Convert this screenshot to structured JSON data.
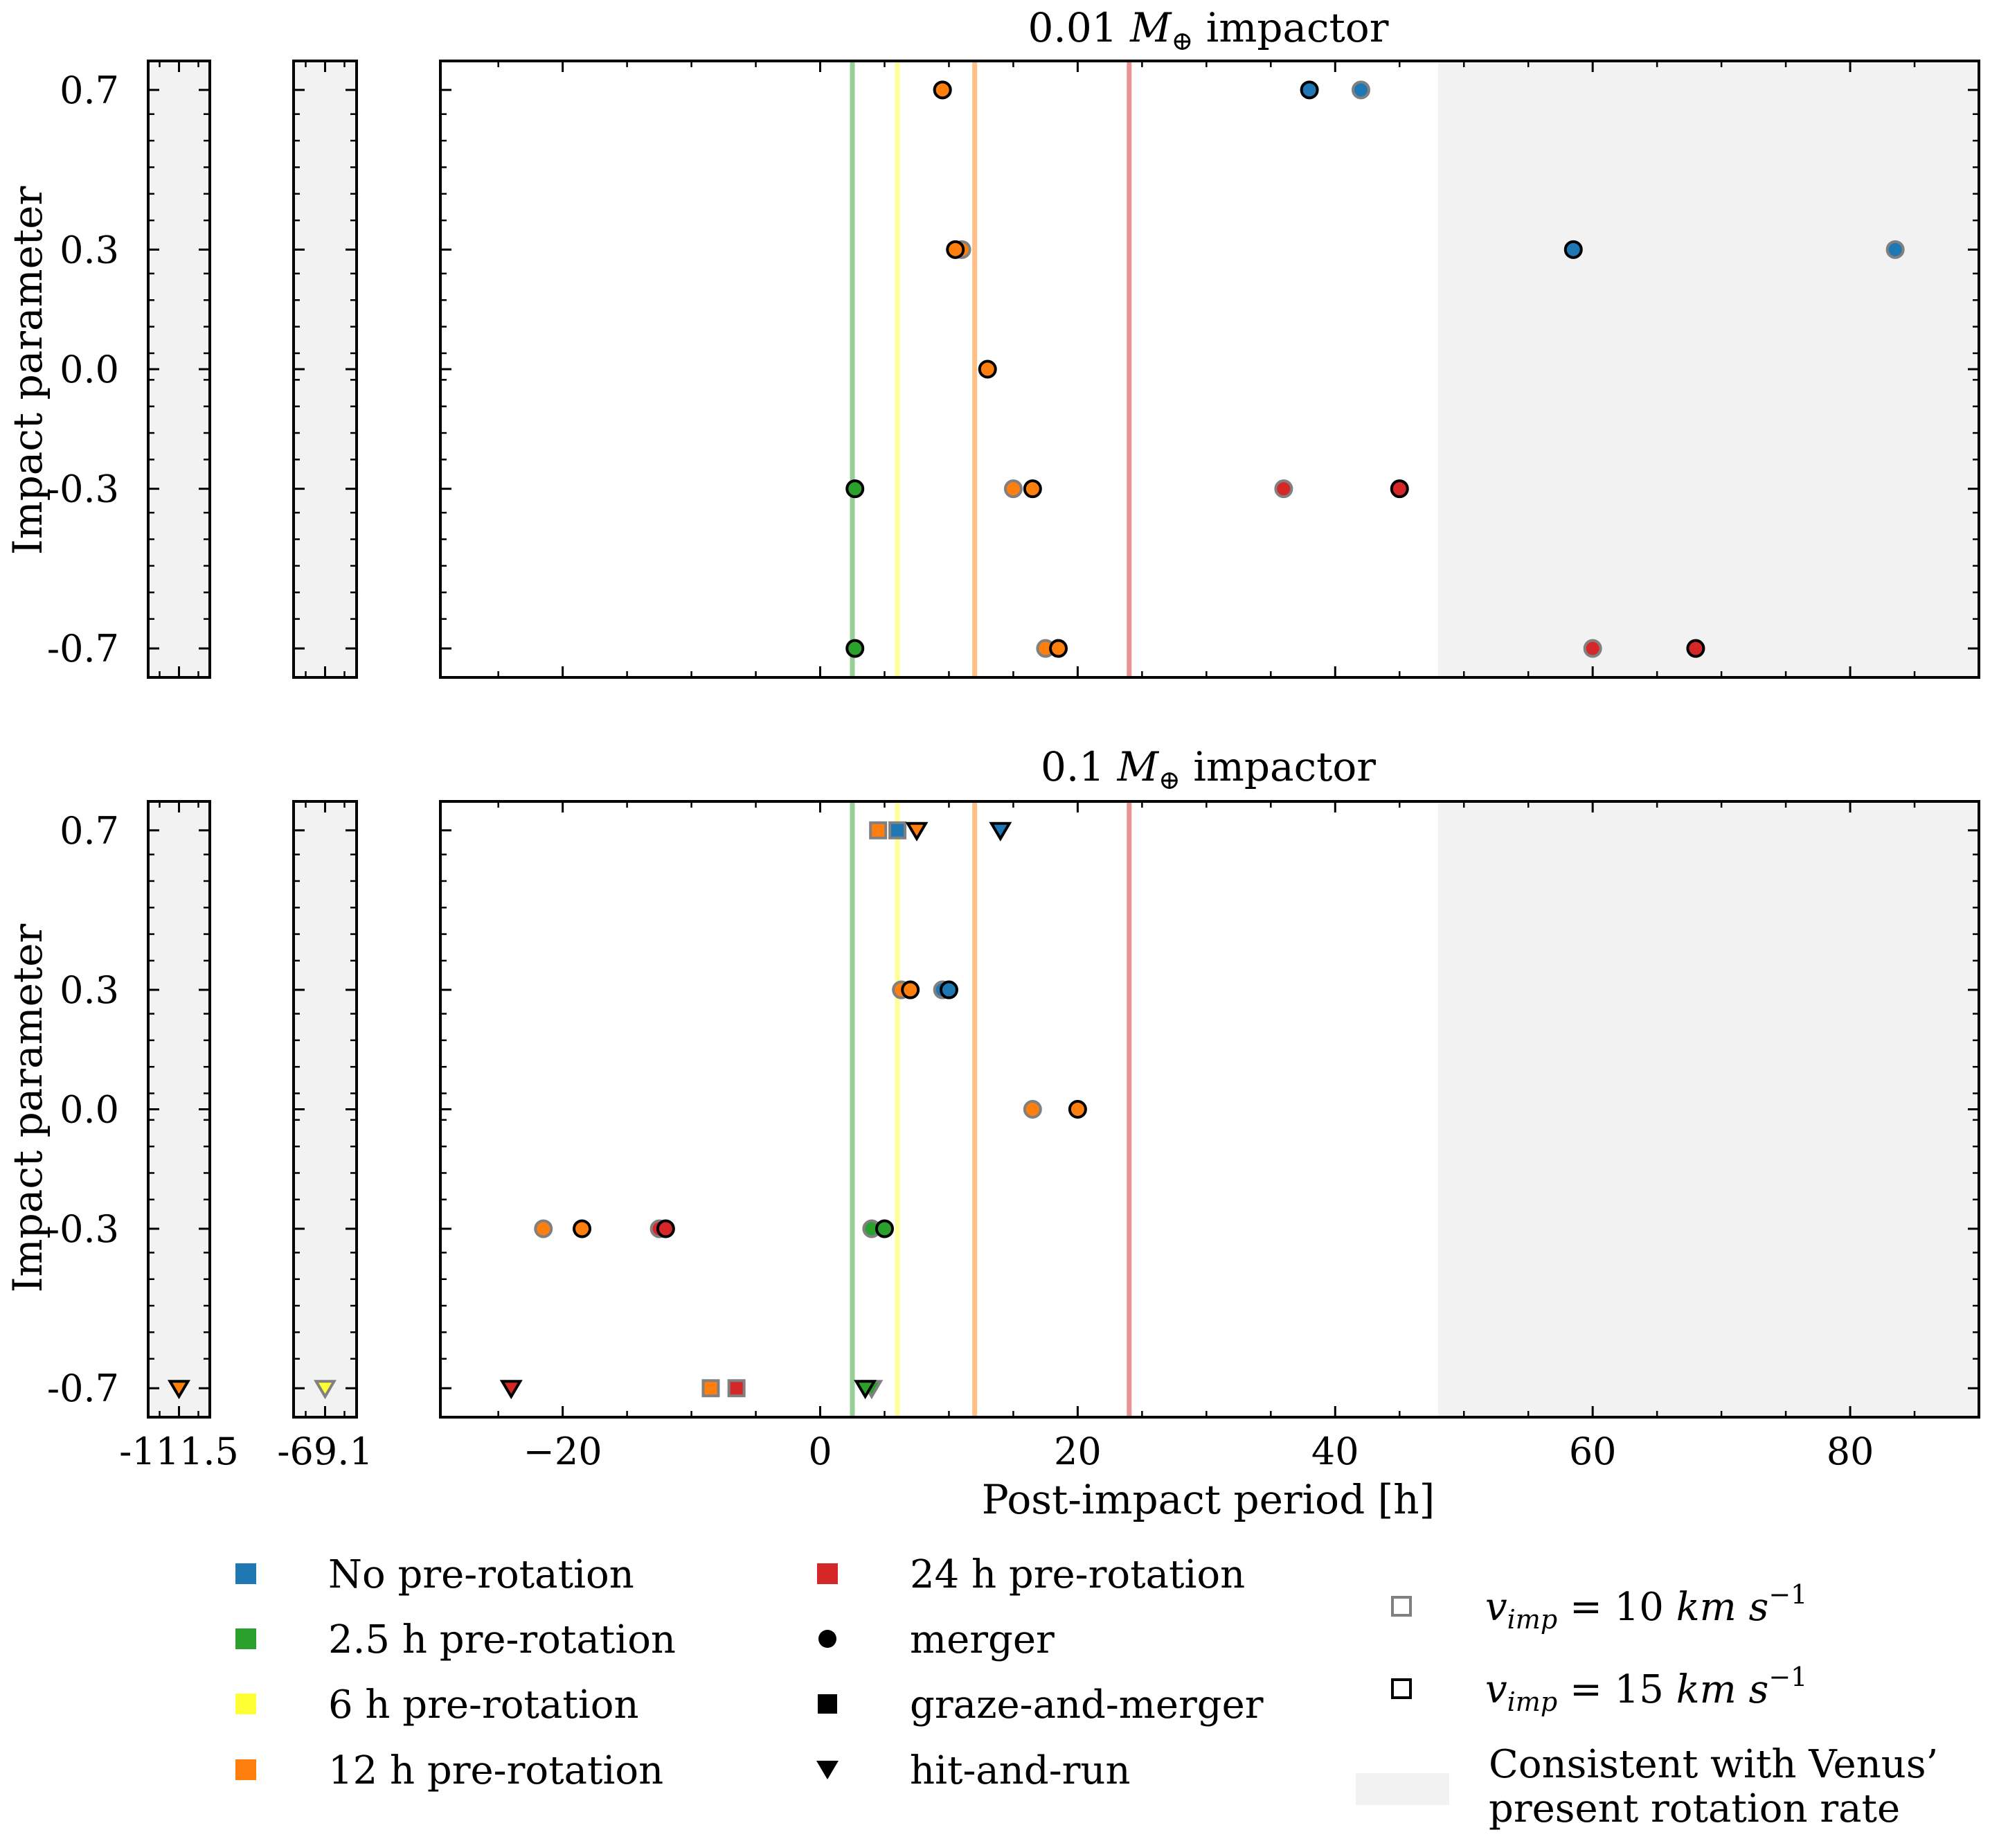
{
  "chart_data": {
    "type": "scatter",
    "x_label": "Post-impact period [h]",
    "y_label": "Impact parameter",
    "x_ticks": [
      -20,
      0,
      20,
      40,
      60,
      80
    ],
    "y_ticks": [
      0.7,
      0.3,
      0.0,
      -0.3,
      -0.7
    ],
    "y_tick_labels": [
      "0.7",
      "0.3",
      "0.0",
      "-0.3",
      "-0.7"
    ],
    "x_range": [
      -29.5,
      90
    ],
    "broken_axis_values": [
      -111.5,
      -69.1
    ],
    "broken_axis_labels": [
      "-111.5",
      "-69.1"
    ],
    "venus_region": {
      "from": 48,
      "to": 90
    },
    "reference_lines": [
      {
        "period": 2.5,
        "color": "#2ca02c"
      },
      {
        "period": 6,
        "color": "#ffff33"
      },
      {
        "period": 12,
        "color": "#ff7f0e"
      },
      {
        "period": 24,
        "color": "#d62728"
      }
    ],
    "colors": {
      "none": "#1f77b4",
      "r2.5": "#2ca02c",
      "r6": "#ffff33",
      "r12": "#ff7f0e",
      "r24": "#d62728",
      "venus_fill": "#f2f2f2",
      "edge_v10": "#808080",
      "edge_v15": "#000000"
    },
    "panels": [
      {
        "title_prefix": "0.01",
        "title_suffix": "impactor",
        "points": [
          {
            "x": 9.5,
            "b": 0.7,
            "rot": "r12",
            "v": 10,
            "kind": "merger"
          },
          {
            "x": 9.5,
            "b": 0.7,
            "rot": "r12",
            "v": 15,
            "kind": "merger"
          },
          {
            "x": 38.0,
            "b": 0.7,
            "rot": "none",
            "v": 15,
            "kind": "merger"
          },
          {
            "x": 42.0,
            "b": 0.7,
            "rot": "none",
            "v": 10,
            "kind": "merger"
          },
          {
            "x": 11.0,
            "b": 0.3,
            "rot": "r12",
            "v": 10,
            "kind": "merger"
          },
          {
            "x": 10.5,
            "b": 0.3,
            "rot": "r12",
            "v": 15,
            "kind": "merger"
          },
          {
            "x": 58.5,
            "b": 0.3,
            "rot": "none",
            "v": 15,
            "kind": "merger"
          },
          {
            "x": 83.5,
            "b": 0.3,
            "rot": "none",
            "v": 10,
            "kind": "merger"
          },
          {
            "x": 13.0,
            "b": 0.0,
            "rot": "r12",
            "v": 15,
            "kind": "merger"
          },
          {
            "x": 2.7,
            "b": -0.3,
            "rot": "r2.5",
            "v": 15,
            "kind": "merger"
          },
          {
            "x": 15.0,
            "b": -0.3,
            "rot": "r12",
            "v": 10,
            "kind": "merger"
          },
          {
            "x": 16.5,
            "b": -0.3,
            "rot": "r12",
            "v": 15,
            "kind": "merger"
          },
          {
            "x": 36.0,
            "b": -0.3,
            "rot": "r24",
            "v": 10,
            "kind": "merger"
          },
          {
            "x": 45.0,
            "b": -0.3,
            "rot": "r24",
            "v": 15,
            "kind": "merger"
          },
          {
            "x": 2.7,
            "b": -0.7,
            "rot": "r2.5",
            "v": 15,
            "kind": "merger"
          },
          {
            "x": 17.5,
            "b": -0.7,
            "rot": "r12",
            "v": 10,
            "kind": "merger"
          },
          {
            "x": 18.5,
            "b": -0.7,
            "rot": "r12",
            "v": 15,
            "kind": "merger"
          },
          {
            "x": 60.0,
            "b": -0.7,
            "rot": "r24",
            "v": 10,
            "kind": "merger"
          },
          {
            "x": 68.0,
            "b": -0.7,
            "rot": "r24",
            "v": 15,
            "kind": "merger"
          }
        ]
      },
      {
        "title_prefix": "0.1",
        "title_suffix": "impactor",
        "points": [
          {
            "x": 4.5,
            "b": 0.7,
            "rot": "r12",
            "v": 10,
            "kind": "graze-and-merger"
          },
          {
            "x": 6.0,
            "b": 0.7,
            "rot": "none",
            "v": 10,
            "kind": "graze-and-merger"
          },
          {
            "x": 7.5,
            "b": 0.7,
            "rot": "r12",
            "v": 15,
            "kind": "hit-and-run"
          },
          {
            "x": 14.0,
            "b": 0.7,
            "rot": "none",
            "v": 15,
            "kind": "hit-and-run"
          },
          {
            "x": 6.3,
            "b": 0.3,
            "rot": "r12",
            "v": 10,
            "kind": "merger"
          },
          {
            "x": 7.0,
            "b": 0.3,
            "rot": "r12",
            "v": 15,
            "kind": "merger"
          },
          {
            "x": 9.5,
            "b": 0.3,
            "rot": "none",
            "v": 10,
            "kind": "merger"
          },
          {
            "x": 10.0,
            "b": 0.3,
            "rot": "none",
            "v": 15,
            "kind": "merger"
          },
          {
            "x": 16.5,
            "b": 0.0,
            "rot": "r12",
            "v": 10,
            "kind": "merger"
          },
          {
            "x": 20.0,
            "b": 0.0,
            "rot": "r12",
            "v": 15,
            "kind": "merger"
          },
          {
            "x": -21.5,
            "b": -0.3,
            "rot": "r12",
            "v": 10,
            "kind": "merger"
          },
          {
            "x": -18.5,
            "b": -0.3,
            "rot": "r12",
            "v": 15,
            "kind": "merger"
          },
          {
            "x": -12.5,
            "b": -0.3,
            "rot": "r24",
            "v": 10,
            "kind": "merger"
          },
          {
            "x": -12.0,
            "b": -0.3,
            "rot": "r24",
            "v": 15,
            "kind": "merger"
          },
          {
            "x": 4.0,
            "b": -0.3,
            "rot": "r2.5",
            "v": 10,
            "kind": "merger"
          },
          {
            "x": 5.0,
            "b": -0.3,
            "rot": "r2.5",
            "v": 15,
            "kind": "merger"
          },
          {
            "x": -24.0,
            "b": -0.7,
            "rot": "r24",
            "v": 15,
            "kind": "hit-and-run"
          },
          {
            "x": -8.5,
            "b": -0.7,
            "rot": "r12",
            "v": 10,
            "kind": "graze-and-merger"
          },
          {
            "x": -6.5,
            "b": -0.7,
            "rot": "r24",
            "v": 10,
            "kind": "graze-and-merger"
          },
          {
            "x": 4.0,
            "b": -0.7,
            "rot": "r2.5",
            "v": 10,
            "kind": "hit-and-run"
          },
          {
            "x": 3.5,
            "b": -0.7,
            "rot": "r2.5",
            "v": 15,
            "kind": "hit-and-run"
          },
          {
            "x": -111.5,
            "b": -0.7,
            "rot": "r12",
            "v": 15,
            "kind": "hit-and-run"
          },
          {
            "x": -69.1,
            "b": -0.7,
            "rot": "r6",
            "v": 10,
            "kind": "hit-and-run"
          }
        ]
      }
    ],
    "legend": {
      "colors": [
        {
          "label": "No pre-rotation",
          "key": "none"
        },
        {
          "label": "2.5 h pre-rotation",
          "key": "r2.5"
        },
        {
          "label": "6 h pre-rotation",
          "key": "r6"
        },
        {
          "label": "12 h pre-rotation",
          "key": "r12"
        },
        {
          "label": "24 h pre-rotation",
          "key": "r24"
        }
      ],
      "markers": [
        {
          "label": "merger",
          "shape": "circle"
        },
        {
          "label": "graze-and-merger",
          "shape": "square"
        },
        {
          "label": "hit-and-run",
          "shape": "triangle"
        }
      ],
      "velocities": [
        {
          "lhs": "v",
          "sub": "imp",
          "eq": " = 10 ",
          "unit": "km s",
          "exp": "−1"
        },
        {
          "lhs": "v",
          "sub": "imp",
          "eq": " = 15 ",
          "unit": "km s",
          "exp": "−1"
        }
      ],
      "venus_line1": "Consistent with Venus’",
      "venus_line2": "present rotation rate"
    }
  }
}
